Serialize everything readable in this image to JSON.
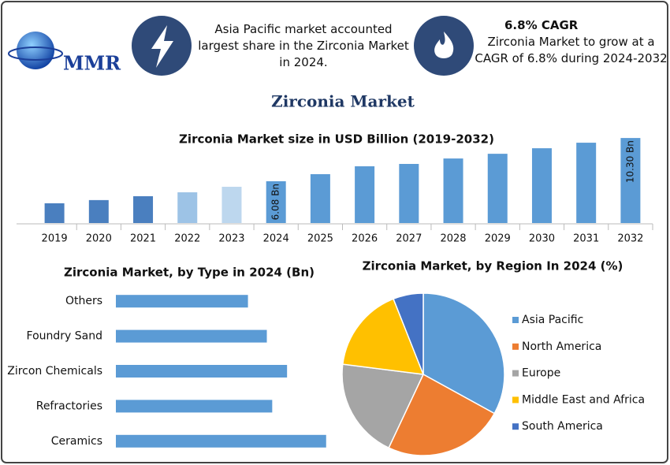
{
  "header": {
    "logo": "MMR",
    "note_1": "Asia Pacific market accounted largest share in the Zirconia Market in 2024.",
    "cagr": "6.8% CAGR",
    "note_2": "Zirconia Market to grow at a CAGR of 6.8% during 2024-2032"
  },
  "title": "Zirconia Market",
  "chart_data": [
    {
      "type": "bar",
      "title": "Zirconia Market size in USD Billion (2019-2032)",
      "categories": [
        "2019",
        "2020",
        "2021",
        "2022",
        "2023",
        "2024",
        "2025",
        "2026",
        "2027",
        "2028",
        "2029",
        "2030",
        "2031",
        "2032"
      ],
      "values": [
        3.93,
        4.24,
        4.62,
        5.0,
        5.54,
        6.08,
        6.77,
        7.54,
        7.77,
        8.3,
        8.76,
        9.3,
        9.84,
        10.3
      ],
      "value_labels": [
        null,
        null,
        null,
        null,
        null,
        "6.08 Bn",
        null,
        null,
        null,
        null,
        null,
        null,
        null,
        "10.30 Bn"
      ],
      "colors": [
        "#4a7fbf",
        "#4a7fbf",
        "#4a7fbf",
        "#9dc3e6",
        "#bdd7ee",
        "#5b9bd5",
        "#5b9bd5",
        "#5b9bd5",
        "#5b9bd5",
        "#5b9bd5",
        "#5b9bd5",
        "#5b9bd5",
        "#5b9bd5",
        "#5b9bd5"
      ],
      "ylim": [
        2,
        11
      ]
    },
    {
      "type": "bar",
      "horizontal": true,
      "title": "Zirconia Market, by Type in 2024 (Bn)",
      "categories": [
        "Others",
        "Foundry Sand",
        "Zircon Chemicals",
        "Refractories",
        "Ceramics"
      ],
      "values": [
        0.98,
        1.12,
        1.27,
        1.16,
        1.56
      ],
      "color": "#5b9bd5",
      "xlim": [
        0,
        2
      ]
    },
    {
      "type": "pie",
      "title": "Zirconia Market, by Region In 2024 (%)",
      "categories": [
        "Asia Pacific",
        "North America",
        "Europe",
        "Middle East and Africa",
        "South America"
      ],
      "values": [
        33,
        24,
        20,
        17,
        6
      ],
      "colors": [
        "#5b9bd5",
        "#ed7d31",
        "#a5a5a5",
        "#ffc000",
        "#4472c4"
      ]
    }
  ]
}
